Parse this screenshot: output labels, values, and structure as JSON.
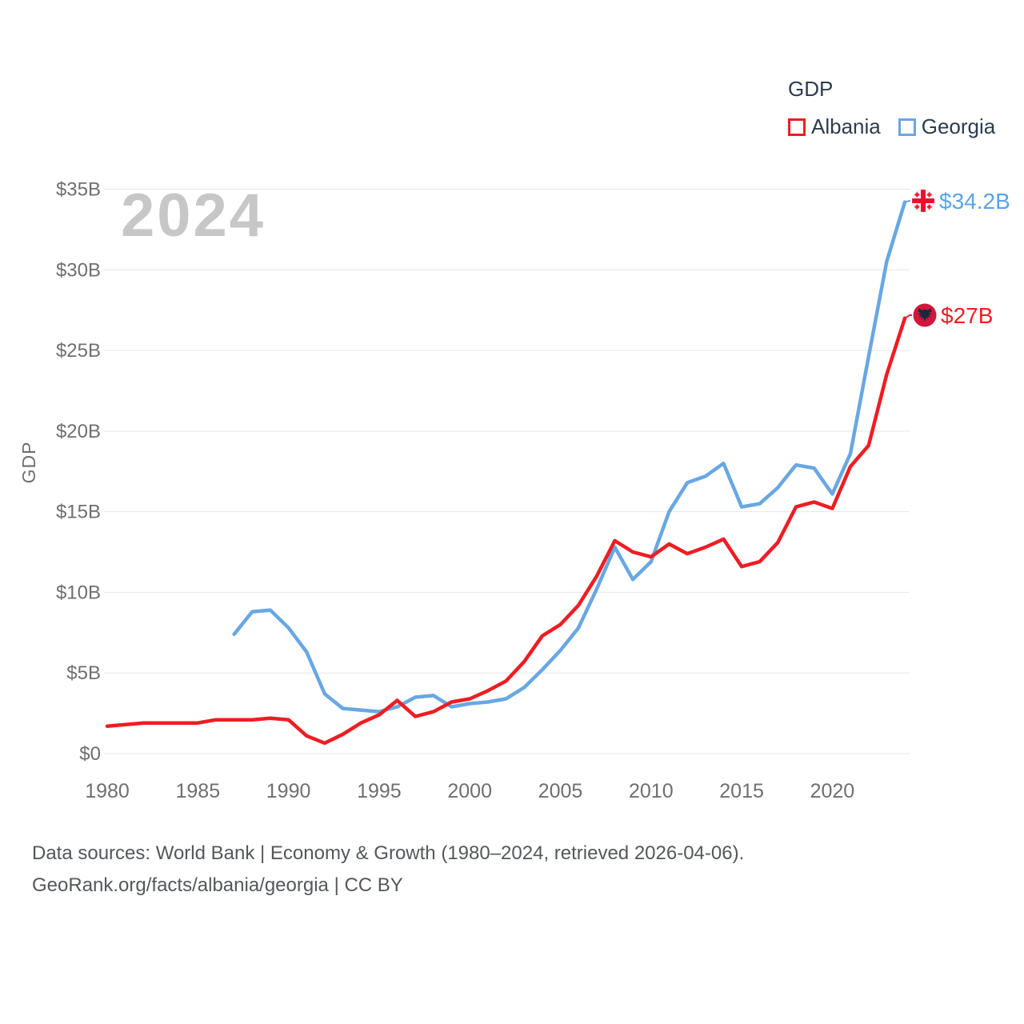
{
  "page": {
    "watermark": "2024",
    "footer_line1": "Data sources: World Bank | Economy & Growth (1980–2024, retrieved 2026-04-06).",
    "footer_line2": "GeoRank.org/facts/albania/georgia | CC BY"
  },
  "legend": {
    "title": "GDP",
    "items": [
      {
        "label": "Albania",
        "color": "#ee1d23"
      },
      {
        "label": "Georgia",
        "color": "#68a7e3"
      }
    ]
  },
  "chart_data": {
    "type": "line",
    "title": "GDP",
    "xlabel": "",
    "ylabel": "GDP",
    "units": "billions of US dollars",
    "grid": "horizontal",
    "legend_position": "top-right",
    "xlim": [
      1980,
      2024
    ],
    "ylim": [
      0,
      35
    ],
    "x_ticks": [
      1980,
      1985,
      1990,
      1995,
      2000,
      2005,
      2010,
      2015,
      2020
    ],
    "y_ticks": [
      {
        "value": 0,
        "label": "$0"
      },
      {
        "value": 5,
        "label": "$5B"
      },
      {
        "value": 10,
        "label": "$10B"
      },
      {
        "value": 15,
        "label": "$15B"
      },
      {
        "value": 20,
        "label": "$20B"
      },
      {
        "value": 25,
        "label": "$25B"
      },
      {
        "value": 30,
        "label": "$30B"
      },
      {
        "value": 35,
        "label": "$35B"
      }
    ],
    "series": [
      {
        "name": "Albania",
        "color": "#ee1d23",
        "end_label": "$27B",
        "flag": "albania-flag",
        "x": [
          1980,
          1981,
          1982,
          1983,
          1984,
          1985,
          1986,
          1987,
          1988,
          1989,
          1990,
          1991,
          1992,
          1993,
          1994,
          1995,
          1996,
          1997,
          1998,
          1999,
          2000,
          2001,
          2002,
          2003,
          2004,
          2005,
          2006,
          2007,
          2008,
          2009,
          2010,
          2011,
          2012,
          2013,
          2014,
          2015,
          2016,
          2017,
          2018,
          2019,
          2020,
          2021,
          2022,
          2023,
          2024
        ],
        "values": [
          1.7,
          1.8,
          1.9,
          1.9,
          1.9,
          1.9,
          2.1,
          2.1,
          2.1,
          2.2,
          2.1,
          1.1,
          0.65,
          1.2,
          1.9,
          2.4,
          3.3,
          2.3,
          2.6,
          3.2,
          3.4,
          3.9,
          4.5,
          5.7,
          7.3,
          8.0,
          9.2,
          11.0,
          13.2,
          12.5,
          12.2,
          13.0,
          12.4,
          12.8,
          13.3,
          11.6,
          11.9,
          13.1,
          15.3,
          15.6,
          15.2,
          17.8,
          19.1,
          23.5,
          27.0
        ]
      },
      {
        "name": "Georgia",
        "color": "#68a7e3",
        "end_label": "$34.2B",
        "flag": "georgia-flag",
        "x": [
          1987,
          1988,
          1989,
          1990,
          1991,
          1992,
          1993,
          1994,
          1995,
          1996,
          1997,
          1998,
          1999,
          2000,
          2001,
          2002,
          2003,
          2004,
          2005,
          2006,
          2007,
          2008,
          2009,
          2010,
          2011,
          2012,
          2013,
          2014,
          2015,
          2016,
          2017,
          2018,
          2019,
          2020,
          2021,
          2022,
          2023,
          2024
        ],
        "values": [
          7.4,
          8.8,
          8.9,
          7.8,
          6.3,
          3.7,
          2.8,
          2.7,
          2.6,
          2.9,
          3.5,
          3.6,
          2.9,
          3.1,
          3.2,
          3.4,
          4.1,
          5.2,
          6.4,
          7.8,
          10.2,
          12.8,
          10.8,
          11.9,
          15.0,
          16.8,
          17.2,
          18.0,
          15.3,
          15.5,
          16.5,
          17.9,
          17.7,
          16.1,
          18.6,
          24.6,
          30.5,
          34.2
        ]
      }
    ]
  }
}
